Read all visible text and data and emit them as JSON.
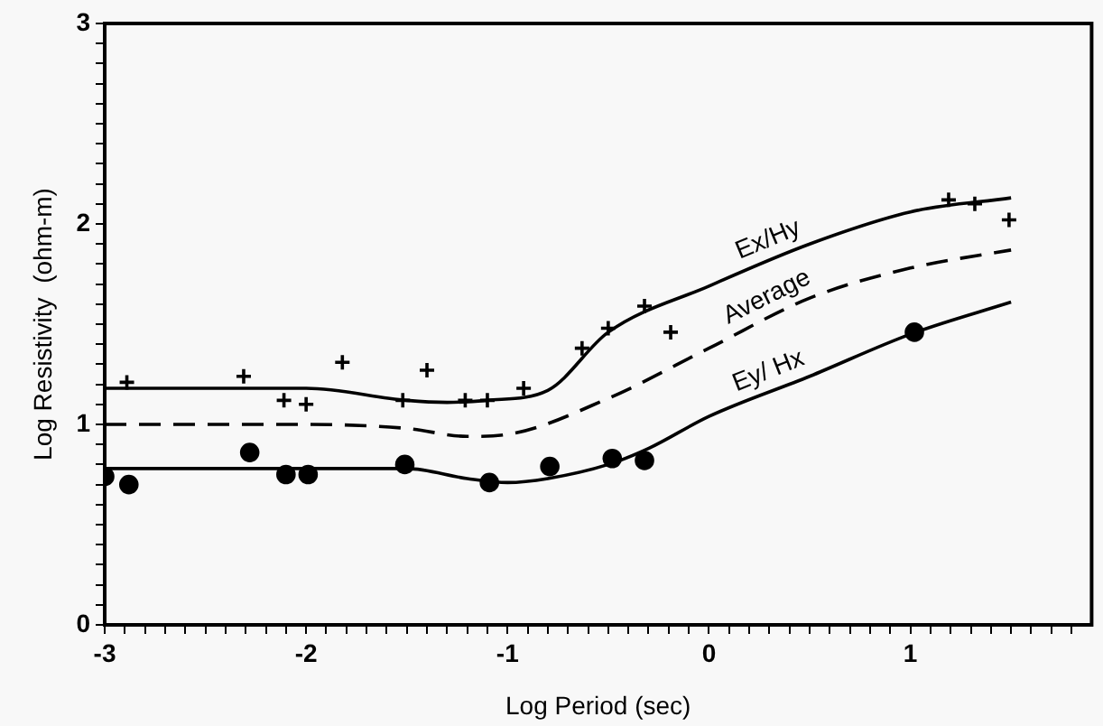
{
  "chart_data": {
    "type": "scatter",
    "xlabel": "Log Period (sec)",
    "ylabel": "Log Resistivity  (ohm-m)",
    "xlim": [
      -3,
      1.9
    ],
    "ylim": [
      0,
      3
    ],
    "xticks": [
      -3,
      {
        "value": -2.9,
        "label": null
      },
      {
        "value": -2.8,
        "label": null
      },
      {
        "value": -2.7,
        "label": null
      },
      {
        "value": -2.6,
        "label": null
      },
      {
        "value": -2.5,
        "label": null
      },
      {
        "value": -2.4,
        "label": null
      },
      {
        "value": -2.3,
        "label": null
      },
      {
        "value": -2.2,
        "label": null
      },
      {
        "value": -2.1,
        "label": null
      },
      -2,
      {
        "value": -1.9,
        "label": null
      },
      {
        "value": -1.8,
        "label": null
      },
      {
        "value": -1.7,
        "label": null
      },
      {
        "value": -1.6,
        "label": null
      },
      {
        "value": -1.5,
        "label": null
      },
      {
        "value": -1.4,
        "label": null
      },
      {
        "value": -1.3,
        "label": null
      },
      {
        "value": -1.2,
        "label": null
      },
      {
        "value": -1.1,
        "label": null
      },
      -1,
      {
        "value": -0.9,
        "label": null
      },
      {
        "value": -0.8,
        "label": null
      },
      {
        "value": -0.7,
        "label": null
      },
      {
        "value": -0.6,
        "label": null
      },
      {
        "value": -0.5,
        "label": null
      },
      {
        "value": -0.4,
        "label": null
      },
      {
        "value": -0.3,
        "label": null
      },
      {
        "value": -0.2,
        "label": null
      },
      {
        "value": -0.1,
        "label": null
      },
      0,
      {
        "value": 0.1,
        "label": null
      },
      {
        "value": 0.2,
        "label": null
      },
      {
        "value": 0.3,
        "label": null
      },
      {
        "value": 0.4,
        "label": null
      },
      {
        "value": 0.5,
        "label": null
      },
      {
        "value": 0.6,
        "label": null
      },
      {
        "value": 0.7,
        "label": null
      },
      {
        "value": 0.8,
        "label": null
      },
      {
        "value": 0.9,
        "label": null
      },
      1,
      {
        "value": 1.1,
        "label": null
      },
      {
        "value": 1.2,
        "label": null
      },
      {
        "value": 1.3,
        "label": null
      },
      {
        "value": 1.4,
        "label": null
      },
      {
        "value": 1.5,
        "label": null
      },
      {
        "value": 1.6,
        "label": null
      },
      {
        "value": 1.7,
        "label": null
      },
      {
        "value": 1.8,
        "label": null
      }
    ],
    "yticks": [
      0,
      {
        "value": 0.1,
        "label": null
      },
      {
        "value": 0.2,
        "label": null
      },
      {
        "value": 0.3,
        "label": null
      },
      {
        "value": 0.4,
        "label": null
      },
      {
        "value": 0.5,
        "label": null
      },
      {
        "value": 0.6,
        "label": null
      },
      {
        "value": 0.7,
        "label": null
      },
      {
        "value": 0.8,
        "label": null
      },
      {
        "value": 0.9,
        "label": null
      },
      1,
      {
        "value": 1.1,
        "label": null
      },
      {
        "value": 1.2,
        "label": null
      },
      {
        "value": 1.3,
        "label": null
      },
      {
        "value": 1.4,
        "label": null
      },
      {
        "value": 1.5,
        "label": null
      },
      {
        "value": 1.6,
        "label": null
      },
      {
        "value": 1.7,
        "label": null
      },
      {
        "value": 1.8,
        "label": null
      },
      {
        "value": 1.9,
        "label": null
      },
      2,
      {
        "value": 2.1,
        "label": null
      },
      {
        "value": 2.2,
        "label": null
      },
      {
        "value": 2.3,
        "label": null
      },
      {
        "value": 2.4,
        "label": null
      },
      {
        "value": 2.5,
        "label": null
      },
      {
        "value": 2.6,
        "label": null
      },
      {
        "value": 2.7,
        "label": null
      },
      {
        "value": 2.8,
        "label": null
      },
      {
        "value": 2.9,
        "label": null
      },
      3
    ],
    "grid": false,
    "legend": false,
    "series": [
      {
        "marker": "cross",
        "color": "#000000",
        "x": [
          -2.89,
          -2.31,
          -2.11,
          -2.0,
          -1.82,
          -1.52,
          -1.4,
          -1.21,
          -1.1,
          -0.92,
          -0.63,
          -0.5,
          -0.32,
          -0.19,
          1.19,
          1.32,
          1.49
        ],
        "values": [
          1.21,
          1.24,
          1.12,
          1.1,
          1.31,
          1.12,
          1.27,
          1.12,
          1.12,
          1.18,
          1.38,
          1.48,
          1.59,
          1.46,
          2.12,
          2.1,
          2.02
        ]
      },
      {
        "marker": "circle",
        "color": "#000000",
        "x": [
          -3.0,
          -2.88,
          -2.28,
          -2.1,
          -1.99,
          -1.51,
          -1.09,
          -0.79,
          -0.48,
          -0.32,
          1.02
        ],
        "values": [
          0.74,
          0.7,
          0.86,
          0.75,
          0.75,
          0.8,
          0.71,
          0.79,
          0.83,
          0.82,
          1.46
        ]
      },
      {
        "type": "line",
        "name": "Ex/Hy",
        "line_style": "solid",
        "color": "#000000",
        "x": [
          -3,
          -2.5,
          -2,
          -1.5,
          -1.3,
          -1.1,
          -0.8,
          -0.5,
          0,
          0.5,
          1,
          1.5
        ],
        "values": [
          1.18,
          1.18,
          1.18,
          1.12,
          1.11,
          1.12,
          1.17,
          1.46,
          1.69,
          1.9,
          2.06,
          2.13
        ]
      },
      {
        "type": "line",
        "name": "Average",
        "line_style": "dashed",
        "color": "#000000",
        "x": [
          -3,
          -2.5,
          -2,
          -1.5,
          -1.2,
          -1,
          -0.5,
          0,
          0.5,
          1,
          1.5
        ],
        "values": [
          1.0,
          1.0,
          1.0,
          0.98,
          0.94,
          0.95,
          1.13,
          1.38,
          1.63,
          1.78,
          1.87
        ]
      },
      {
        "type": "line",
        "name": "Ey/ Hx",
        "line_style": "solid",
        "color": "#000000",
        "x": [
          -3,
          -2.5,
          -2,
          -1.5,
          -1.2,
          -1,
          -0.8,
          -0.5,
          -0.3,
          0,
          0.5,
          1,
          1.5
        ],
        "values": [
          0.78,
          0.78,
          0.78,
          0.78,
          0.73,
          0.71,
          0.73,
          0.8,
          0.88,
          1.04,
          1.24,
          1.45,
          1.61
        ]
      }
    ]
  }
}
